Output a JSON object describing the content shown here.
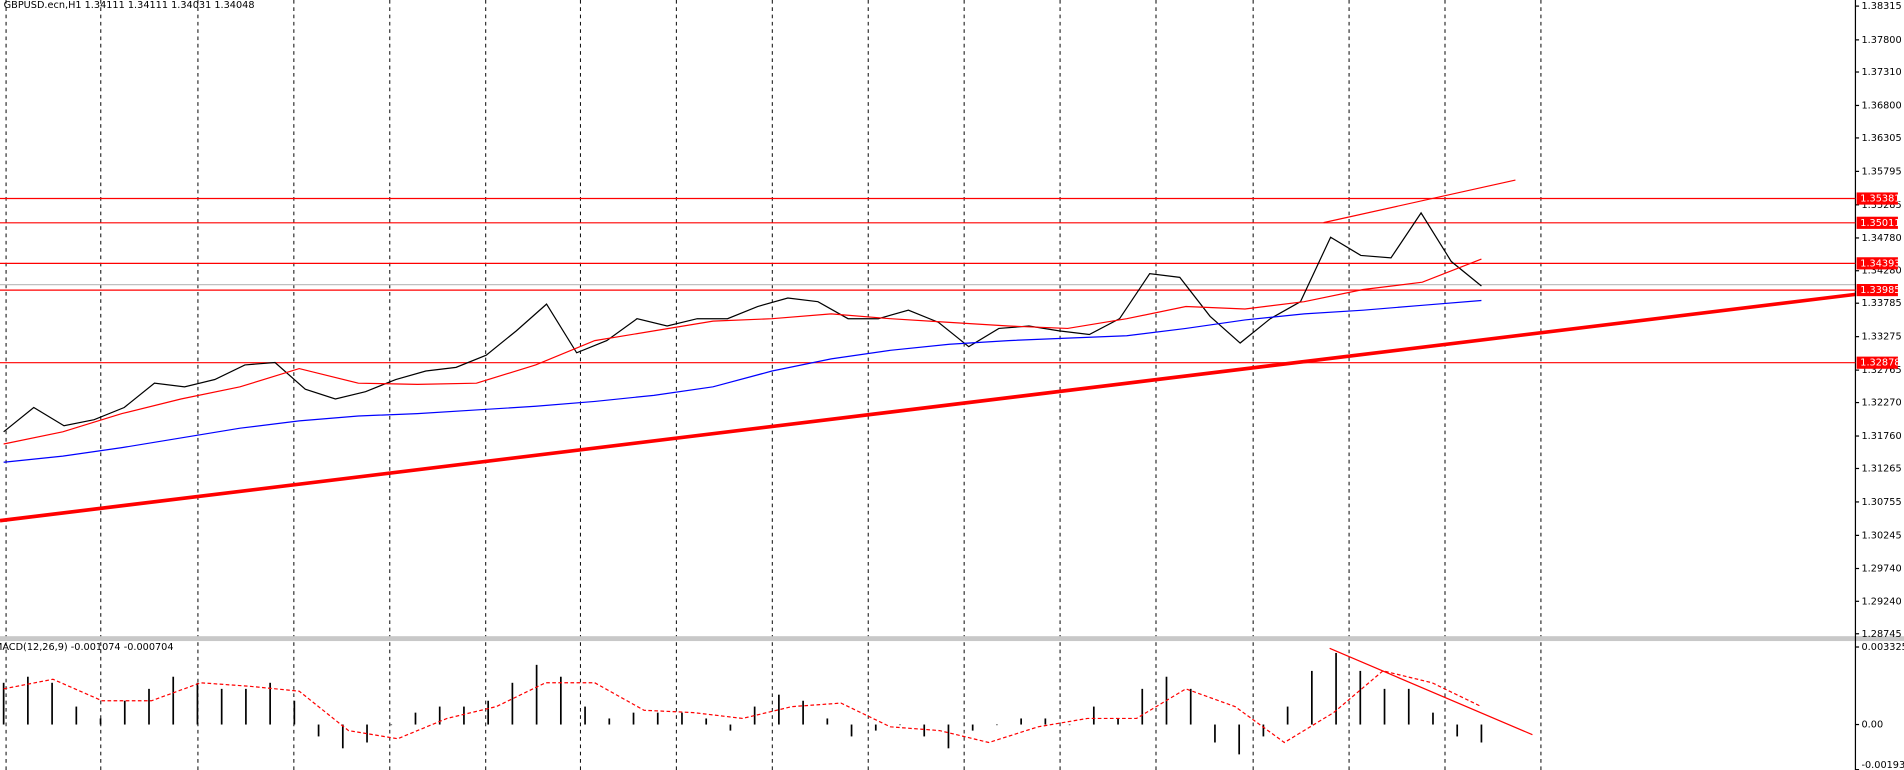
{
  "chart_data": [
    {
      "type": "line",
      "title": "GBPUSD.ecn,H1  1.34111 1.34111 1.34031 1.34048",
      "ylim": [
        1.28708,
        1.38408
      ],
      "yticks": [
        1.38315,
        {
          "value": 1.378,
          "label": "1.37800"
        },
        {
          "value": 1.3731,
          "label": "1.37310"
        },
        {
          "value": 1.368,
          "label": "1.36800"
        },
        1.36305,
        1.35795,
        1.35285,
        {
          "value": 1.3478,
          "label": "1.34780"
        },
        {
          "value": 1.3428,
          "label": "1.34280"
        },
        1.33785,
        1.33275,
        1.32765,
        {
          "value": 1.3227,
          "label": "1.32270"
        },
        {
          "value": 1.3176,
          "label": "1.31760"
        },
        1.31265,
        1.30755,
        1.30245,
        {
          "value": 1.2974,
          "label": "1.29740"
        },
        {
          "value": 1.2924,
          "label": "1.29240"
        },
        1.28745
      ],
      "levels": [
        1.35381,
        1.35011,
        1.34393,
        1.33985,
        1.32878
      ],
      "level_color": "#ff0000",
      "series": [
        {
          "color": "#000000",
          "values": [
            1.31824,
            1.32195,
            1.31917,
            1.32009,
            1.32195,
            1.32566,
            1.3251,
            1.32621,
            1.32844,
            1.32881,
            1.32473,
            1.32325,
            1.32436,
            1.32621,
            1.32751,
            1.32807,
            1.32992,
            1.33363,
            1.33771,
            1.33029,
            1.33215,
            1.33549,
            1.33437,
            1.33549,
            1.33549,
            1.33734,
            1.33864,
            1.33808,
            1.33549,
            1.33549,
            1.33679,
            1.33493,
            1.33122,
            1.334,
            1.33437,
            1.33363,
            1.33308,
            1.33549,
            1.34235,
            1.34179,
            1.33586,
            1.33178,
            1.33549,
            1.33808,
            1.34791,
            1.34513,
            1.34476,
            1.35162,
            1.3442,
            1.34048
          ]
        },
        {
          "color": "#ff0000",
          "values": [
            1.31638,
            1.31824,
            1.32102,
            1.32325,
            1.3251,
            1.32788,
            1.32566,
            1.32547,
            1.32566,
            1.32844,
            1.33215,
            1.33363,
            1.33512,
            1.33549,
            1.33623,
            1.33549,
            1.33493,
            1.33437,
            1.334,
            1.33549,
            1.33734,
            1.33697,
            1.33808,
            1.33994,
            1.34105,
            1.34457
          ]
        },
        {
          "color": "#0000ff",
          "values": [
            1.3136,
            1.31453,
            1.31583,
            1.31731,
            1.31879,
            1.31991,
            1.32065,
            1.32102,
            1.32158,
            1.32213,
            1.32288,
            1.3238,
            1.3251,
            1.32751,
            1.32937,
            1.33066,
            1.33159,
            1.33215,
            1.33252,
            1.33289,
            1.334,
            1.3353,
            1.33623,
            1.33679,
            1.33753,
            1.33827
          ]
        }
      ]
    },
    {
      "type": "bar",
      "title": "MACD(12,26,9) -0.001074 -0.000704",
      "ylim": [
        -0.00195,
        0.00358
      ],
      "yticks": [
        0.003325,
        {
          "value": 0,
          "label": "0.00"
        },
        -0.001935
      ],
      "color": "#000000",
      "values": [
        0.00179,
        0.00205,
        0.00179,
        0.00077,
        0.00026,
        0.00102,
        0.00153,
        0.00205,
        0.00179,
        0.00153,
        0.00153,
        0.00179,
        0.00102,
        -0.00051,
        -0.00102,
        -0.00077,
        0,
        0.00051,
        0.00077,
        0.00077,
        0.00102,
        0.00179,
        0.00256,
        0.00205,
        0.00077,
        0.00026,
        0.00051,
        0.00051,
        0.00051,
        0.00026,
        -0.00026,
        0.00077,
        0.00128,
        0.00102,
        0.00026,
        -0.00051,
        -0.00026,
        0,
        -0.00051,
        -0.00102,
        -0.00026,
        0,
        0.00026,
        0.00026,
        0,
        0.00077,
        0.00026,
        0.00153,
        0.00205,
        0.00153,
        -0.00077,
        -0.00128,
        -0.00051,
        0.00077,
        0.0023,
        0.00307,
        0.0023,
        0.00153,
        0.00153,
        0.00051,
        -0.00051,
        -0.00077
      ],
      "signal_color": "#ff0000",
      "signal": [
        0.00153,
        0.00194,
        0.00102,
        0.00102,
        0.00179,
        0.00164,
        0.00143,
        -0.00026,
        -0.00061,
        0.00026,
        0.00077,
        0.00179,
        0.00179,
        0.00061,
        0.00051,
        0.00026,
        0.00077,
        0.00092,
        -0.0001,
        -0.00026,
        -0.00077,
        -0.0001,
        0.00026,
        0.00026,
        0.00153,
        0.00077,
        -0.00077,
        0.00051,
        0.0023,
        0.00179,
        0.00077
      ]
    }
  ]
}
